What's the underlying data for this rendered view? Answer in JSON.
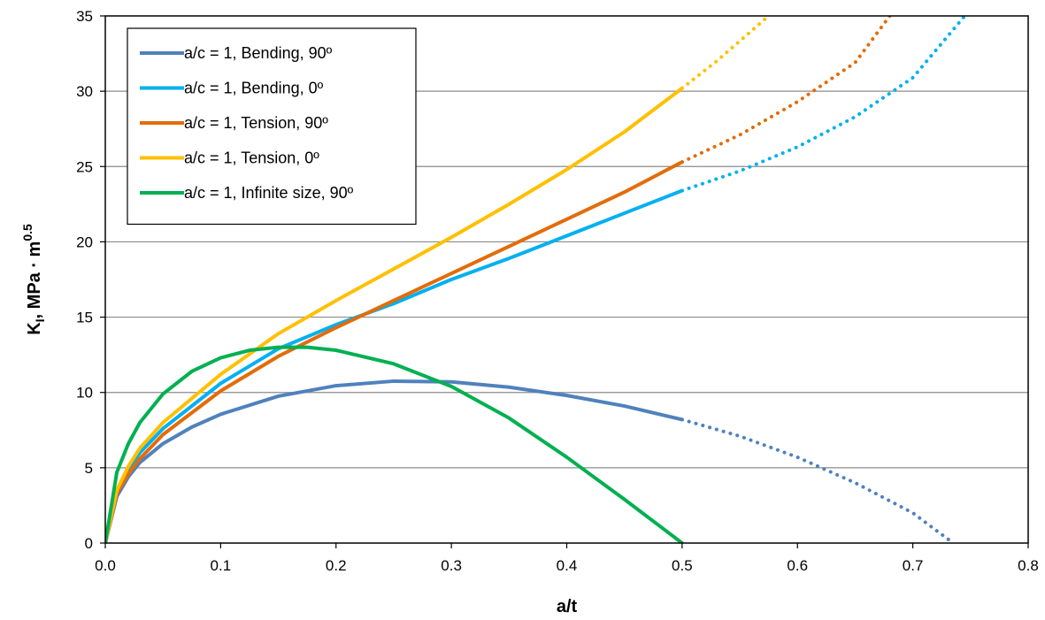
{
  "chart_data": {
    "type": "line",
    "xlabel": "a/t",
    "ylabel": {
      "main": "K",
      "sub": "I",
      "mid": ", MPa · m",
      "sup": "0.5"
    },
    "xlim": [
      0,
      0.8
    ],
    "ylim": [
      0,
      35
    ],
    "x_ticks": [
      0,
      0.1,
      0.2,
      0.3,
      0.4,
      0.5,
      0.6,
      0.7,
      0.8
    ],
    "x_tick_labels": [
      "0.0",
      "0.1",
      "0.2",
      "0.3",
      "0.4",
      "0.5",
      "0.6",
      "0.7",
      "0.8"
    ],
    "y_ticks": [
      0,
      5,
      10,
      15,
      20,
      25,
      30,
      35
    ],
    "y_tick_labels": [
      "0",
      "5",
      "10",
      "15",
      "20",
      "25",
      "30",
      "35"
    ],
    "grid": "horizontal",
    "legend_position": "top-left",
    "series": [
      {
        "name": "a/c = 1, Bending, 90º",
        "color": "#4F81BD",
        "solid": [
          [
            0,
            0
          ],
          [
            0.01,
            3.1
          ],
          [
            0.02,
            4.4
          ],
          [
            0.03,
            5.35
          ],
          [
            0.05,
            6.6
          ],
          [
            0.075,
            7.7
          ],
          [
            0.1,
            8.55
          ],
          [
            0.15,
            9.75
          ],
          [
            0.2,
            10.45
          ],
          [
            0.25,
            10.75
          ],
          [
            0.3,
            10.7
          ],
          [
            0.35,
            10.35
          ],
          [
            0.4,
            9.8
          ],
          [
            0.45,
            9.1
          ],
          [
            0.5,
            8.2
          ]
        ],
        "dotted": [
          [
            0.5,
            8.2
          ],
          [
            0.55,
            7.1
          ],
          [
            0.6,
            5.7
          ],
          [
            0.65,
            4.0
          ],
          [
            0.7,
            2.0
          ],
          [
            0.735,
            0
          ]
        ]
      },
      {
        "name": "a/c = 1, Bending, 0º",
        "color": "#00B0F0",
        "solid": [
          [
            0,
            0
          ],
          [
            0.01,
            3.4
          ],
          [
            0.02,
            4.9
          ],
          [
            0.03,
            6.0
          ],
          [
            0.05,
            7.6
          ],
          [
            0.1,
            10.6
          ],
          [
            0.15,
            12.9
          ],
          [
            0.2,
            14.5
          ],
          [
            0.25,
            15.9
          ],
          [
            0.3,
            17.5
          ],
          [
            0.35,
            18.9
          ],
          [
            0.4,
            20.4
          ],
          [
            0.45,
            21.9
          ],
          [
            0.5,
            23.4
          ]
        ],
        "dotted": [
          [
            0.5,
            23.4
          ],
          [
            0.55,
            24.7
          ],
          [
            0.6,
            26.3
          ],
          [
            0.65,
            28.3
          ],
          [
            0.7,
            30.9
          ],
          [
            0.745,
            35
          ]
        ]
      },
      {
        "name": "a/c = 1, Tension, 90º",
        "color": "#E36C09",
        "solid": [
          [
            0,
            0
          ],
          [
            0.01,
            3.3
          ],
          [
            0.02,
            4.6
          ],
          [
            0.03,
            5.6
          ],
          [
            0.05,
            7.2
          ],
          [
            0.1,
            10.1
          ],
          [
            0.15,
            12.4
          ],
          [
            0.2,
            14.3
          ],
          [
            0.25,
            16.1
          ],
          [
            0.3,
            17.9
          ],
          [
            0.35,
            19.7
          ],
          [
            0.4,
            21.5
          ],
          [
            0.45,
            23.3
          ],
          [
            0.5,
            25.3
          ]
        ],
        "dotted": [
          [
            0.5,
            25.3
          ],
          [
            0.55,
            27.1
          ],
          [
            0.6,
            29.3
          ],
          [
            0.65,
            31.9
          ],
          [
            0.68,
            35
          ]
        ]
      },
      {
        "name": "a/c = 1, Tension, 0º",
        "color": "#FFC000",
        "solid": [
          [
            0,
            0
          ],
          [
            0.01,
            3.5
          ],
          [
            0.02,
            5.1
          ],
          [
            0.03,
            6.3
          ],
          [
            0.05,
            8.0
          ],
          [
            0.1,
            11.2
          ],
          [
            0.15,
            13.9
          ],
          [
            0.2,
            16.1
          ],
          [
            0.25,
            18.2
          ],
          [
            0.3,
            20.3
          ],
          [
            0.35,
            22.5
          ],
          [
            0.4,
            24.8
          ],
          [
            0.45,
            27.3
          ],
          [
            0.5,
            30.2
          ]
        ],
        "dotted": [
          [
            0.5,
            30.2
          ],
          [
            0.53,
            32.0
          ],
          [
            0.575,
            35
          ]
        ]
      },
      {
        "name": "a/c = 1, Infinite size, 90º",
        "color": "#00B050",
        "solid": [
          [
            0,
            0
          ],
          [
            0.01,
            4.7
          ],
          [
            0.02,
            6.6
          ],
          [
            0.03,
            8.0
          ],
          [
            0.05,
            9.9
          ],
          [
            0.075,
            11.4
          ],
          [
            0.1,
            12.3
          ],
          [
            0.125,
            12.8
          ],
          [
            0.15,
            13.0
          ],
          [
            0.175,
            13.0
          ],
          [
            0.2,
            12.8
          ],
          [
            0.25,
            11.9
          ],
          [
            0.3,
            10.4
          ],
          [
            0.35,
            8.3
          ],
          [
            0.4,
            5.7
          ],
          [
            0.45,
            2.9
          ],
          [
            0.5,
            0
          ]
        ],
        "dotted": []
      }
    ]
  }
}
